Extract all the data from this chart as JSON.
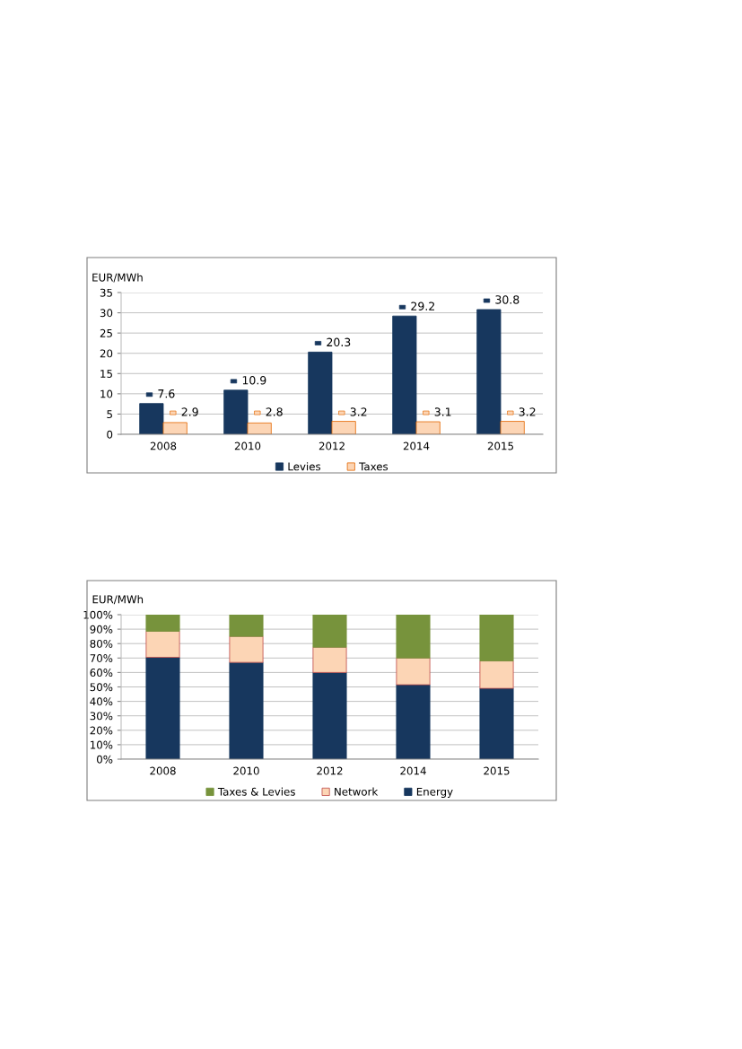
{
  "chart_data": [
    {
      "type": "bar",
      "ylabel": "EUR/MWh",
      "categories": [
        "2008",
        "2010",
        "2012",
        "2014",
        "2015"
      ],
      "series": [
        {
          "name": "Levies",
          "color": "#17375e",
          "values": [
            7.6,
            10.9,
            20.3,
            29.2,
            30.8
          ]
        },
        {
          "name": "Taxes",
          "color": "#fcd5b5",
          "values": [
            2.9,
            2.8,
            3.2,
            3.1,
            3.2
          ]
        }
      ],
      "ylim": [
        0,
        35
      ],
      "yticks": [
        0,
        5,
        10,
        15,
        20,
        25,
        30,
        35
      ],
      "grid": "y",
      "legend": "bottom",
      "data_labels": true
    },
    {
      "type": "bar",
      "stacked": true,
      "ylabel": "EUR/MWh",
      "categories": [
        "2008",
        "2010",
        "2012",
        "2014",
        "2015"
      ],
      "series": [
        {
          "name": "Energy",
          "color": "#17375e",
          "values": [
            70.5,
            67,
            60,
            51.5,
            49
          ]
        },
        {
          "name": "Network",
          "color": "#fcd5b5",
          "values": [
            18,
            18,
            17.5,
            18.5,
            19
          ]
        },
        {
          "name": "Taxes & Levies",
          "color": "#77933c",
          "values": [
            11.5,
            15,
            22.5,
            30,
            32
          ]
        }
      ],
      "ylim": [
        0,
        100
      ],
      "yticks": [
        {
          "value": 0,
          "label": "0%"
        },
        {
          "value": 10,
          "label": "10%"
        },
        {
          "value": 20,
          "label": "20%"
        },
        {
          "value": 30,
          "label": "30%"
        },
        {
          "value": 40,
          "label": "40%"
        },
        {
          "value": 50,
          "label": "50%"
        },
        {
          "value": 60,
          "label": "60%"
        },
        {
          "value": 70,
          "label": "70%"
        },
        {
          "value": 80,
          "label": "80%"
        },
        {
          "value": 90,
          "label": "90%"
        },
        {
          "value": 100,
          "label": "100%"
        }
      ],
      "grid": "y",
      "legend": "bottom"
    }
  ]
}
